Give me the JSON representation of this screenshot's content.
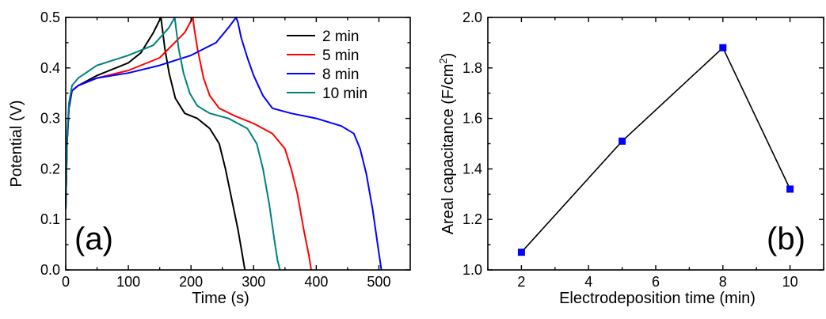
{
  "chart_data": [
    {
      "type": "line",
      "panel_label": "(a)",
      "xlabel": "Time (s)",
      "ylabel": "Potential (V)",
      "xlim": [
        0,
        550
      ],
      "ylim": [
        0,
        0.5
      ],
      "xticks": [
        0,
        100,
        200,
        300,
        400,
        500
      ],
      "yticks": [
        0.0,
        0.1,
        0.2,
        0.3,
        0.4,
        0.5
      ],
      "ytick_labels": [
        "0.0",
        "0.1",
        "0.2",
        "0.3",
        "0.4",
        "0.5"
      ],
      "legend_position": "top-right",
      "series": [
        {
          "name": "2 min",
          "color": "#000000",
          "x": [
            0,
            2,
            5,
            10,
            20,
            50,
            100,
            120,
            140,
            152,
            154,
            158,
            165,
            175,
            190,
            210,
            230,
            245,
            255,
            265,
            275,
            282,
            286
          ],
          "y": [
            0.12,
            0.25,
            0.32,
            0.355,
            0.365,
            0.385,
            0.41,
            0.43,
            0.47,
            0.5,
            0.48,
            0.44,
            0.39,
            0.34,
            0.31,
            0.3,
            0.28,
            0.25,
            0.2,
            0.14,
            0.08,
            0.03,
            0.0
          ]
        },
        {
          "name": "5 min",
          "color": "#ff0000",
          "x": [
            0,
            2,
            5,
            10,
            20,
            50,
            100,
            150,
            190,
            203,
            205,
            210,
            220,
            230,
            245,
            270,
            300,
            330,
            350,
            360,
            370,
            380,
            388,
            392
          ],
          "y": [
            0.12,
            0.25,
            0.32,
            0.355,
            0.365,
            0.38,
            0.395,
            0.42,
            0.47,
            0.5,
            0.48,
            0.44,
            0.38,
            0.345,
            0.32,
            0.305,
            0.29,
            0.27,
            0.24,
            0.2,
            0.15,
            0.08,
            0.03,
            0.0
          ]
        },
        {
          "name": "8 min",
          "color": "#0000ff",
          "x": [
            0,
            2,
            5,
            10,
            20,
            50,
            100,
            150,
            200,
            240,
            260,
            272,
            275,
            280,
            290,
            300,
            315,
            330,
            360,
            400,
            440,
            460,
            470,
            480,
            490,
            498,
            504
          ],
          "y": [
            0.12,
            0.25,
            0.32,
            0.355,
            0.365,
            0.38,
            0.39,
            0.405,
            0.425,
            0.45,
            0.48,
            0.5,
            0.49,
            0.46,
            0.42,
            0.385,
            0.345,
            0.32,
            0.31,
            0.3,
            0.285,
            0.27,
            0.24,
            0.19,
            0.12,
            0.05,
            0.0
          ]
        },
        {
          "name": "10 min",
          "color": "#008080",
          "x": [
            0,
            2,
            5,
            10,
            20,
            50,
            100,
            140,
            165,
            174,
            176,
            180,
            188,
            198,
            210,
            230,
            260,
            290,
            305,
            315,
            325,
            333,
            338,
            342
          ],
          "y": [
            0.12,
            0.26,
            0.33,
            0.365,
            0.38,
            0.405,
            0.425,
            0.445,
            0.48,
            0.5,
            0.48,
            0.44,
            0.39,
            0.35,
            0.325,
            0.31,
            0.3,
            0.28,
            0.25,
            0.2,
            0.13,
            0.06,
            0.02,
            0.0
          ]
        }
      ]
    },
    {
      "type": "line",
      "panel_label": "(b)",
      "xlabel": "Electrodeposition time (min)",
      "ylabel_main": "Areal capacitance (F/cm",
      "ylabel_sup": "2",
      "ylabel_end": ")",
      "xlim": [
        1,
        11
      ],
      "ylim": [
        1.0,
        2.0
      ],
      "xticks": [
        2,
        4,
        6,
        8,
        10
      ],
      "yticks": [
        1.0,
        1.2,
        1.4,
        1.6,
        1.8,
        2.0
      ],
      "ytick_labels": [
        "1.0",
        "1.2",
        "1.4",
        "1.6",
        "1.8",
        "2.0"
      ],
      "line_color": "#000000",
      "marker_color": "#0000ff",
      "series": [
        {
          "x": [
            2,
            5,
            8,
            10
          ],
          "y": [
            1.07,
            1.51,
            1.88,
            1.32
          ]
        }
      ]
    }
  ]
}
